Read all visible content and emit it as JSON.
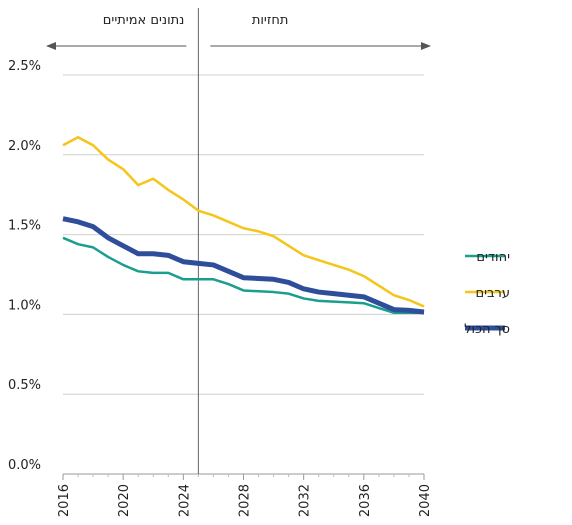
{
  "chart_data": {
    "type": "line",
    "x": [
      2016,
      2017,
      2018,
      2019,
      2020,
      2021,
      2022,
      2023,
      2024,
      2025,
      2026,
      2027,
      2028,
      2029,
      2030,
      2031,
      2032,
      2033,
      2034,
      2035,
      2036,
      2037,
      2038,
      2039,
      2040
    ],
    "series": [
      {
        "name": "יהודים",
        "color": "#1a9e8f",
        "width": 2.5,
        "values": [
          1.48,
          1.44,
          1.42,
          1.36,
          1.31,
          1.27,
          1.26,
          1.26,
          1.22,
          1.22,
          1.22,
          1.19,
          1.15,
          1.145,
          1.14,
          1.13,
          1.1,
          1.085,
          1.08,
          1.075,
          1.07,
          1.04,
          1.01,
          1.01,
          1.01
        ]
      },
      {
        "name": "ערבים",
        "color": "#f5c518",
        "width": 2.5,
        "values": [
          2.06,
          2.11,
          2.06,
          1.97,
          1.91,
          1.81,
          1.85,
          1.78,
          1.72,
          1.65,
          1.62,
          1.58,
          1.54,
          1.52,
          1.49,
          1.43,
          1.37,
          1.34,
          1.31,
          1.28,
          1.24,
          1.18,
          1.12,
          1.09,
          1.05
        ]
      },
      {
        "name": "סך הכול",
        "color": "#2e4d9a",
        "width": 5,
        "values": [
          1.6,
          1.58,
          1.55,
          1.48,
          1.43,
          1.38,
          1.38,
          1.37,
          1.33,
          1.32,
          1.31,
          1.27,
          1.23,
          1.225,
          1.22,
          1.2,
          1.16,
          1.14,
          1.13,
          1.12,
          1.11,
          1.07,
          1.03,
          1.025,
          1.015
        ]
      }
    ],
    "xlim": [
      2016,
      2040
    ],
    "xticks": [
      2016,
      2020,
      2024,
      2028,
      2032,
      2036,
      2040
    ],
    "ylim": [
      0,
      2.5
    ],
    "yticks": [
      {
        "value": 0,
        "label": "0.0%"
      },
      {
        "value": 0.5,
        "label": "0.5%"
      },
      {
        "value": 1,
        "label": "1.0%"
      },
      {
        "value": 1.5,
        "label": "1.5%"
      },
      {
        "value": 2,
        "label": "2.0%"
      },
      {
        "value": 2.5,
        "label": "2.5%"
      }
    ],
    "grid": true,
    "forecast_start": 2025,
    "annotations": [
      "נתונים אמיתיים",
      "תחזיות"
    ]
  }
}
